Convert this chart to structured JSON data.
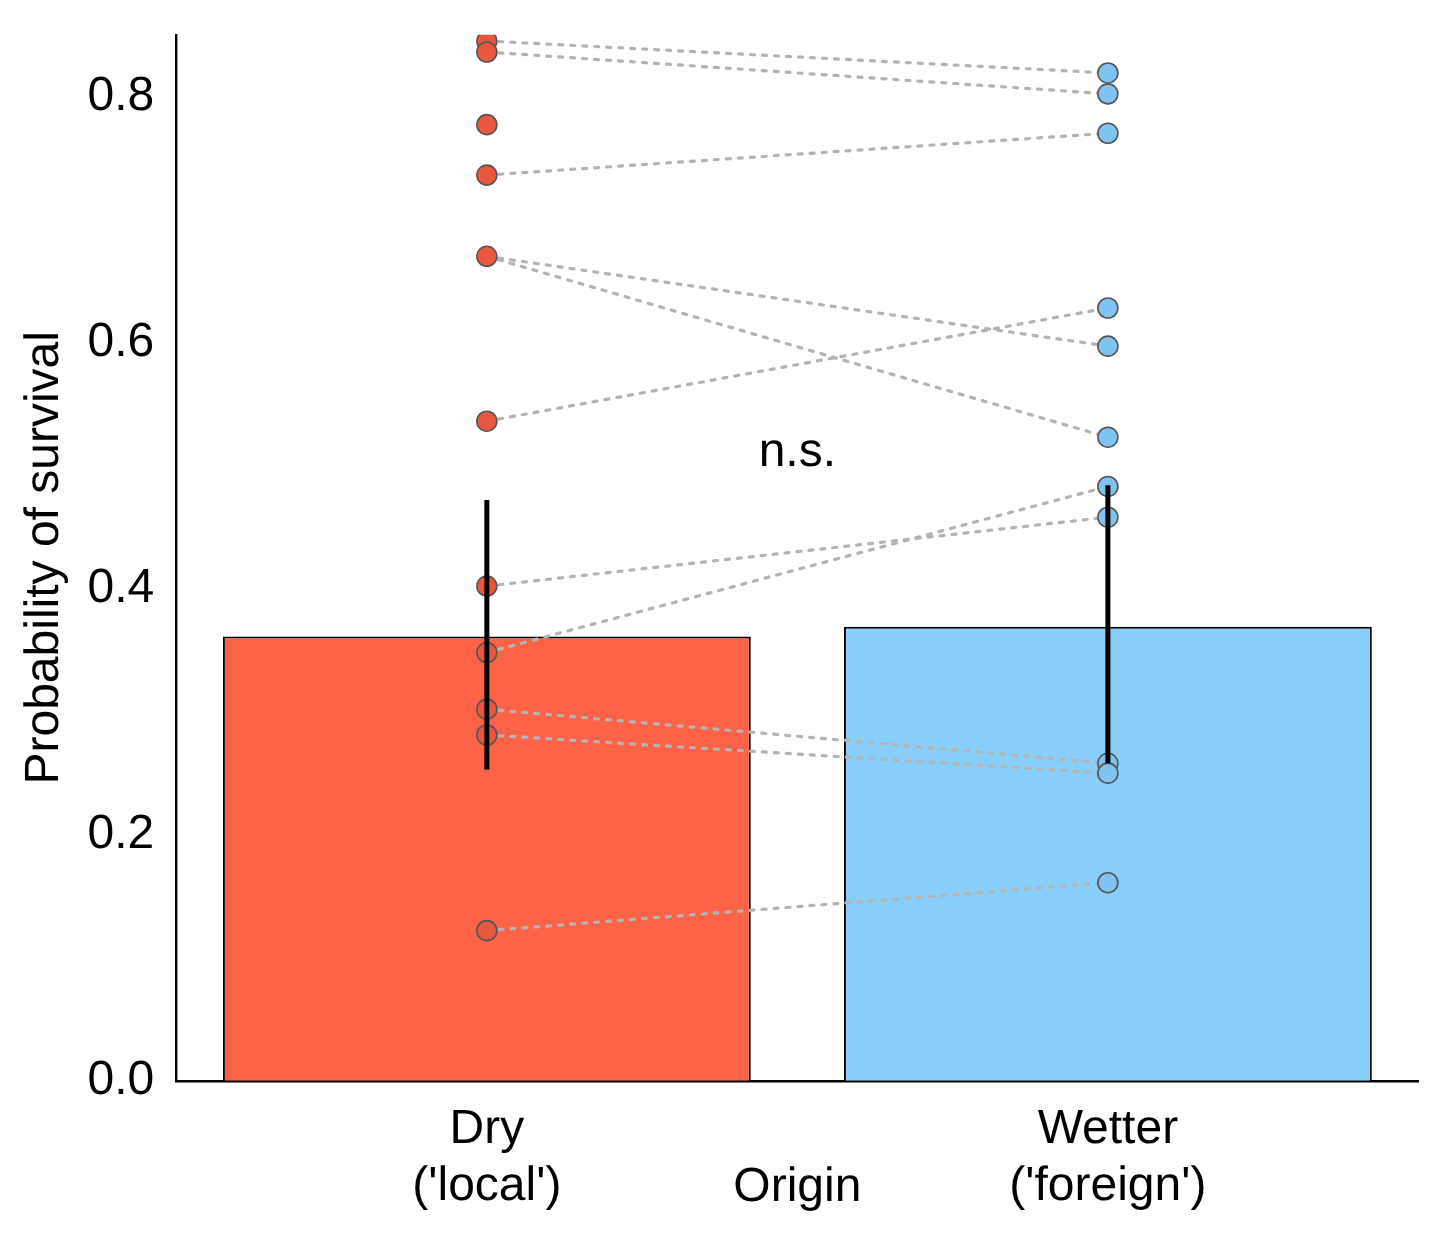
{
  "chart_data": {
    "type": "bar",
    "ylabel": "Probability of survival",
    "xlabel": "Origin",
    "categories": [
      "Dry\n('local')",
      "Wetter\n('foreign')"
    ],
    "ylim": [
      0,
      0.85
    ],
    "yticks": [
      {
        "value": 0,
        "label": "0.0"
      },
      {
        "value": 0.2,
        "label": "0.2"
      },
      {
        "value": 0.4,
        "label": "0.4"
      },
      {
        "value": 0.6,
        "label": "0.6"
      },
      {
        "value": 0.8,
        "label": "0.8"
      }
    ],
    "grid": false,
    "legend": false,
    "annotations": [
      "n.s."
    ],
    "series": [
      {
        "colors": [
          "#ff6347",
          "#87cefa"
        ],
        "values": [
          0.361,
          0.369
        ],
        "errors": [
          [
            0.253,
            0.472
          ],
          [
            0.258,
            0.484
          ]
        ]
      },
      {
        "type": "line",
        "color": "#b4b4b4",
        "line_style": "dotted",
        "marker": "none",
        "values": [
          0.845,
          0.819
        ]
      },
      {
        "type": "line",
        "color": "#b4b4b4",
        "line_style": "dotted",
        "marker": "none",
        "values": [
          0.836,
          0.802
        ]
      },
      {
        "type": "line",
        "color": "#b4b4b4",
        "line_style": "dotted",
        "marker": "none",
        "values": [
          0.736,
          0.77
        ]
      },
      {
        "type": "line",
        "color": "#b4b4b4",
        "line_style": "dotted",
        "marker": "none",
        "values": [
          0.67,
          0.597
        ]
      },
      {
        "type": "line",
        "color": "#b4b4b4",
        "line_style": "dotted",
        "marker": "none",
        "values": [
          0.67,
          0.523
        ]
      },
      {
        "type": "line",
        "color": "#b4b4b4",
        "line_style": "dotted",
        "marker": "none",
        "values": [
          0.536,
          0.628
        ]
      },
      {
        "type": "line",
        "color": "#b4b4b4",
        "line_style": "dotted",
        "marker": "none",
        "values": [
          0.402,
          0.458
        ]
      },
      {
        "type": "line",
        "color": "#b4b4b4",
        "line_style": "dotted",
        "marker": "none",
        "values": [
          0.348,
          0.483
        ]
      },
      {
        "type": "line",
        "color": "#b4b4b4",
        "line_style": "dotted",
        "marker": "none",
        "values": [
          0.302,
          0.258
        ]
      },
      {
        "type": "line",
        "color": "#b4b4b4",
        "line_style": "dotted",
        "marker": "none",
        "values": [
          0.281,
          0.25
        ]
      },
      {
        "type": "line",
        "color": "#b4b4b4",
        "line_style": "dotted",
        "marker": "none",
        "values": [
          0.122,
          0.161
        ]
      },
      {
        "type": "scatter",
        "color": "#e8583e",
        "marker": "circle",
        "x": [
          "Dry\n('local')",
          "Dry\n('local')",
          "Dry\n('local')",
          "Dry\n('local')",
          "Dry\n('local')",
          "Dry\n('local')",
          "Dry\n('local')",
          "Dry\n('local')",
          "Dry\n('local')",
          "Dry\n('local')",
          "Dry\n('local')"
        ],
        "values": [
          0.845,
          0.836,
          0.777,
          0.736,
          0.67,
          0.536,
          0.402,
          0.348,
          0.302,
          0.281,
          0.122
        ]
      },
      {
        "type": "scatter",
        "color": "#80c2f0",
        "marker": "circle",
        "x": [
          "Wetter\n('foreign')",
          "Wetter\n('foreign')",
          "Wetter\n('foreign')",
          "Wetter\n('foreign')",
          "Wetter\n('foreign')",
          "Wetter\n('foreign')",
          "Wetter\n('foreign')",
          "Wetter\n('foreign')",
          "Wetter\n('foreign')",
          "Wetter\n('foreign')",
          "Wetter\n('foreign')"
        ],
        "values": [
          0.819,
          0.802,
          0.77,
          0.628,
          0.597,
          0.523,
          0.483,
          0.458,
          0.258,
          0.25,
          0.161
        ]
      }
    ]
  }
}
